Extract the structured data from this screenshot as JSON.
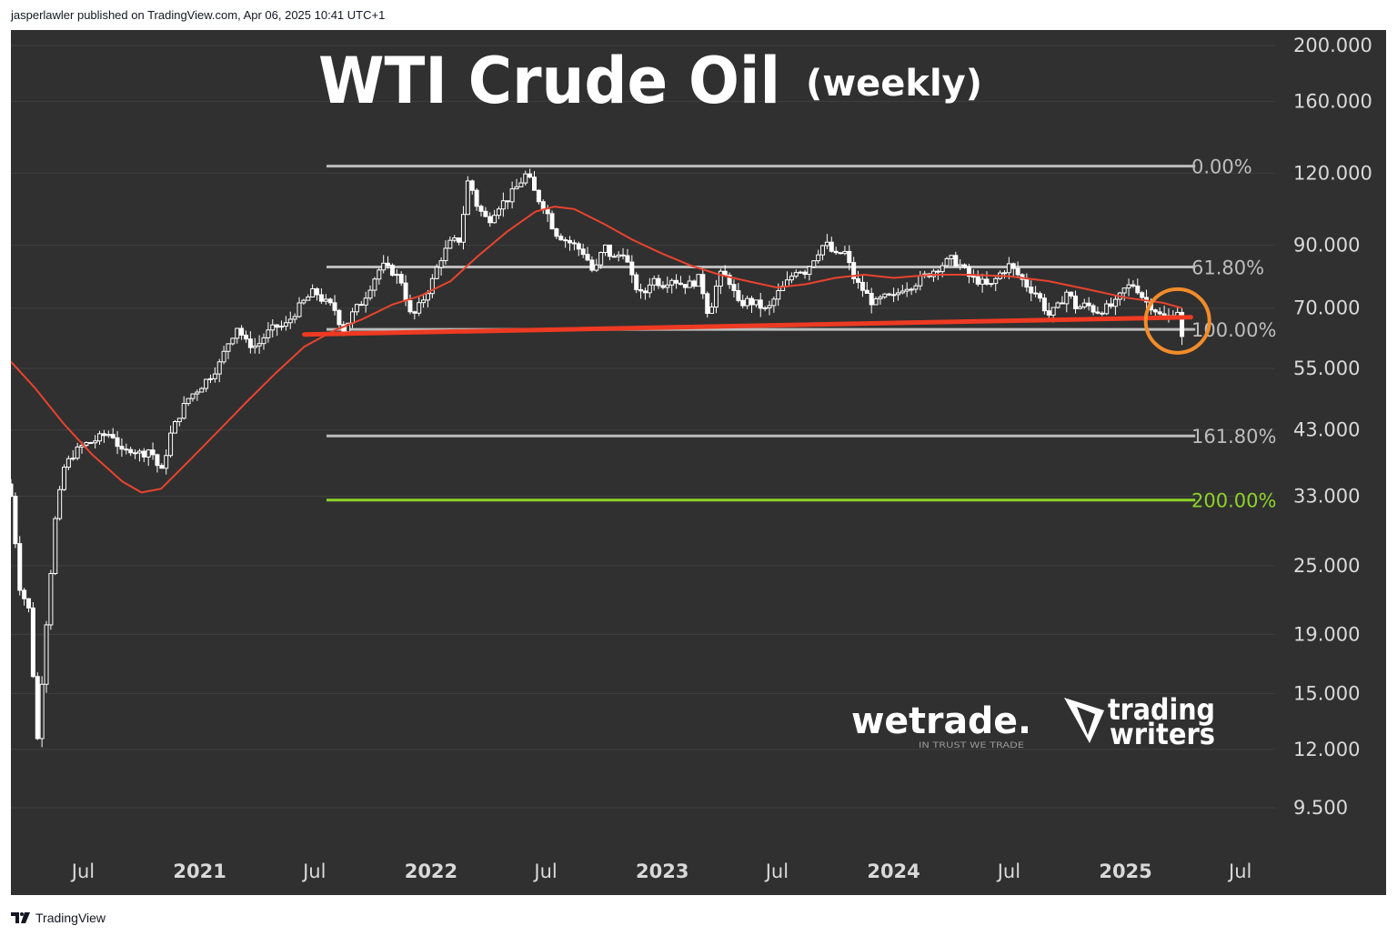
{
  "header": {
    "published_text": "jasperlawler published on TradingView.com, Apr 06, 2025 10:41 UTC+1"
  },
  "footer": {
    "brand": "TradingView",
    "logo_icon": "tradingview-logo-icon"
  },
  "brand_logos": {
    "wetrade": {
      "name": "wetrade.",
      "tagline": "IN TRUST WE TRADE"
    },
    "trading_writers": {
      "line1": "trading",
      "line2": "writers",
      "icon": "triangle-pen-icon"
    }
  },
  "colors": {
    "background": "#303030",
    "candle": "#ffffff",
    "moving_average": "#e8432e",
    "trendline": "#ee3a22",
    "fib_line": "#bdbdbd",
    "fib_200": "#8dd22a",
    "highlight_circle": "#f28c2a"
  },
  "chart_data": {
    "type": "candlestick",
    "title": "WTI Crude Oil",
    "subtitle": "(weekly)",
    "y_scale": "log",
    "ylim": [
      8.5,
      230
    ],
    "y_ticks": [
      "200.000",
      "160.000",
      "120.000",
      "90.000",
      "70.000",
      "55.000",
      "43.000",
      "33.000",
      "25.000",
      "19.000",
      "15.000",
      "12.000",
      "9.500"
    ],
    "y_tick_values": [
      200,
      160,
      120,
      90,
      70,
      55,
      43,
      33,
      25,
      19,
      15,
      12,
      9.5
    ],
    "x_ticks": [
      "Jul",
      "2021",
      "Jul",
      "2022",
      "Jul",
      "2023",
      "Jul",
      "2024",
      "Jul",
      "2025",
      "Jul"
    ],
    "x_tick_dates": [
      "2020-07-01",
      "2021-01-01",
      "2021-07-01",
      "2022-01-01",
      "2022-07-01",
      "2023-01-01",
      "2023-07-01",
      "2024-01-01",
      "2024-07-01",
      "2025-01-01",
      "2025-07-01"
    ],
    "x_tick_is_year": [
      false,
      true,
      false,
      true,
      false,
      true,
      false,
      true,
      false,
      true,
      false
    ],
    "xlim": [
      "2020-03-09",
      "2025-08-25"
    ],
    "close_series": [
      [
        "2020-03-09",
        33
      ],
      [
        "2020-03-23",
        23
      ],
      [
        "2020-04-06",
        21
      ],
      [
        "2020-04-20",
        12.5
      ],
      [
        "2020-05-04",
        20
      ],
      [
        "2020-05-18",
        30
      ],
      [
        "2020-06-01",
        37
      ],
      [
        "2020-06-15",
        39
      ],
      [
        "2020-07-01",
        40.5
      ],
      [
        "2020-07-15",
        41
      ],
      [
        "2020-08-01",
        42
      ],
      [
        "2020-08-15",
        42.5
      ],
      [
        "2020-09-01",
        39
      ],
      [
        "2020-09-15",
        40
      ],
      [
        "2020-10-01",
        39
      ],
      [
        "2020-10-15",
        40
      ],
      [
        "2020-11-01",
        36
      ],
      [
        "2020-11-15",
        42
      ],
      [
        "2020-12-01",
        46
      ],
      [
        "2020-12-15",
        49
      ],
      [
        "2021-01-01",
        51
      ],
      [
        "2021-01-15",
        53
      ],
      [
        "2021-02-01",
        56
      ],
      [
        "2021-02-15",
        61
      ],
      [
        "2021-03-01",
        65
      ],
      [
        "2021-03-15",
        61
      ],
      [
        "2021-04-01",
        60
      ],
      [
        "2021-04-15",
        63
      ],
      [
        "2021-05-01",
        65
      ],
      [
        "2021-05-15",
        65
      ],
      [
        "2021-06-01",
        69
      ],
      [
        "2021-06-15",
        72
      ],
      [
        "2021-07-01",
        75
      ],
      [
        "2021-07-15",
        72
      ],
      [
        "2021-08-01",
        70
      ],
      [
        "2021-08-15",
        64
      ],
      [
        "2021-09-01",
        69
      ],
      [
        "2021-09-15",
        72
      ],
      [
        "2021-10-01",
        78
      ],
      [
        "2021-10-15",
        83
      ],
      [
        "2021-11-01",
        81
      ],
      [
        "2021-11-15",
        78
      ],
      [
        "2021-12-01",
        67
      ],
      [
        "2021-12-15",
        71
      ],
      [
        "2022-01-01",
        77
      ],
      [
        "2022-01-15",
        85
      ],
      [
        "2022-02-01",
        91
      ],
      [
        "2022-02-15",
        92
      ],
      [
        "2022-03-01",
        118
      ],
      [
        "2022-03-15",
        105
      ],
      [
        "2022-04-01",
        99
      ],
      [
        "2022-04-15",
        105
      ],
      [
        "2022-05-01",
        108
      ],
      [
        "2022-05-15",
        113
      ],
      [
        "2022-06-01",
        120
      ],
      [
        "2022-06-15",
        110
      ],
      [
        "2022-07-01",
        104
      ],
      [
        "2022-07-15",
        95
      ],
      [
        "2022-08-01",
        92
      ],
      [
        "2022-08-15",
        90
      ],
      [
        "2022-09-01",
        87
      ],
      [
        "2022-09-15",
        80
      ],
      [
        "2022-10-01",
        90
      ],
      [
        "2022-10-15",
        85
      ],
      [
        "2022-11-01",
        88
      ],
      [
        "2022-11-15",
        78
      ],
      [
        "2022-12-01",
        73
      ],
      [
        "2022-12-15",
        79
      ],
      [
        "2023-01-01",
        77
      ],
      [
        "2023-01-15",
        79
      ],
      [
        "2023-02-01",
        77
      ],
      [
        "2023-02-15",
        77
      ],
      [
        "2023-03-01",
        79
      ],
      [
        "2023-03-15",
        68
      ],
      [
        "2023-04-01",
        80
      ],
      [
        "2023-04-15",
        79
      ],
      [
        "2023-05-01",
        71
      ],
      [
        "2023-05-15",
        72
      ],
      [
        "2023-06-01",
        71
      ],
      [
        "2023-06-15",
        69
      ],
      [
        "2023-07-01",
        74
      ],
      [
        "2023-07-15",
        77
      ],
      [
        "2023-08-01",
        82
      ],
      [
        "2023-08-15",
        81
      ],
      [
        "2023-09-01",
        87
      ],
      [
        "2023-09-15",
        91
      ],
      [
        "2023-10-01",
        86
      ],
      [
        "2023-10-15",
        88
      ],
      [
        "2023-11-01",
        78
      ],
      [
        "2023-11-15",
        75
      ],
      [
        "2023-12-01",
        71
      ],
      [
        "2023-12-15",
        73
      ],
      [
        "2024-01-01",
        73
      ],
      [
        "2024-01-15",
        76
      ],
      [
        "2024-02-01",
        77
      ],
      [
        "2024-02-15",
        79
      ],
      [
        "2024-03-01",
        81
      ],
      [
        "2024-03-15",
        83
      ],
      [
        "2024-04-01",
        85
      ],
      [
        "2024-04-15",
        83
      ],
      [
        "2024-05-01",
        79
      ],
      [
        "2024-05-15",
        78
      ],
      [
        "2024-06-01",
        76
      ],
      [
        "2024-06-15",
        80
      ],
      [
        "2024-07-01",
        83
      ],
      [
        "2024-07-15",
        80
      ],
      [
        "2024-08-01",
        76
      ],
      [
        "2024-08-15",
        74
      ],
      [
        "2024-09-01",
        68
      ],
      [
        "2024-09-15",
        70
      ],
      [
        "2024-10-01",
        75
      ],
      [
        "2024-10-15",
        70
      ],
      [
        "2024-11-01",
        71
      ],
      [
        "2024-11-15",
        69
      ],
      [
        "2024-12-01",
        70
      ],
      [
        "2024-12-15",
        71
      ],
      [
        "2025-01-01",
        76
      ],
      [
        "2025-01-15",
        77
      ],
      [
        "2025-02-01",
        72
      ],
      [
        "2025-02-15",
        70
      ],
      [
        "2025-03-01",
        67
      ],
      [
        "2025-03-15",
        68
      ],
      [
        "2025-03-24",
        69.4
      ],
      [
        "2025-03-31",
        61.99
      ]
    ],
    "moving_average": [
      [
        "2020-03-09",
        56.5
      ],
      [
        "2020-04-15",
        51
      ],
      [
        "2020-06-01",
        44
      ],
      [
        "2020-07-15",
        39
      ],
      [
        "2020-09-01",
        35
      ],
      [
        "2020-10-01",
        33.5
      ],
      [
        "2020-11-01",
        34
      ],
      [
        "2020-12-15",
        38
      ],
      [
        "2021-02-01",
        43
      ],
      [
        "2021-03-15",
        48
      ],
      [
        "2021-05-01",
        54
      ],
      [
        "2021-06-15",
        60
      ],
      [
        "2021-08-01",
        64
      ],
      [
        "2021-09-15",
        67
      ],
      [
        "2021-11-01",
        71
      ],
      [
        "2021-12-15",
        73.5
      ],
      [
        "2022-02-01",
        78
      ],
      [
        "2022-03-15",
        86
      ],
      [
        "2022-05-01",
        95
      ],
      [
        "2022-06-15",
        103
      ],
      [
        "2022-07-15",
        105
      ],
      [
        "2022-08-15",
        104
      ],
      [
        "2022-10-01",
        98
      ],
      [
        "2022-11-15",
        92
      ],
      [
        "2023-01-01",
        87
      ],
      [
        "2023-02-15",
        83
      ],
      [
        "2023-04-01",
        80
      ],
      [
        "2023-05-15",
        78
      ],
      [
        "2023-07-01",
        76
      ],
      [
        "2023-08-15",
        77
      ],
      [
        "2023-10-01",
        79
      ],
      [
        "2023-11-15",
        80
      ],
      [
        "2024-01-01",
        79
      ],
      [
        "2024-03-01",
        80
      ],
      [
        "2024-05-01",
        80
      ],
      [
        "2024-07-01",
        79.5
      ],
      [
        "2024-09-01",
        78
      ],
      [
        "2024-11-01",
        75.5
      ],
      [
        "2025-01-01",
        73
      ],
      [
        "2025-03-01",
        71.5
      ],
      [
        "2025-03-31",
        70
      ]
    ],
    "trendline": {
      "start": [
        "2021-06-15",
        63
      ],
      "end": [
        "2025-04-14",
        67.5
      ]
    },
    "fib_levels": [
      {
        "label": "0.00%",
        "value": 123.5,
        "color": "#bdbdbd",
        "start": "2021-07-20"
      },
      {
        "label": "61.80%",
        "value": 82.5,
        "color": "#bdbdbd",
        "start": "2021-07-20"
      },
      {
        "label": "100.00%",
        "value": 64.3,
        "color": "#bdbdbd",
        "start": "2021-07-20"
      },
      {
        "label": "161.80%",
        "value": 42,
        "color": "#bdbdbd",
        "start": "2021-07-20"
      },
      {
        "label": "200.00%",
        "value": 32.5,
        "color": "#8dd22a",
        "start": "2021-07-20"
      }
    ],
    "fib_end": "2025-04-21",
    "highlight": {
      "center": [
        "2025-03-24",
        66.5
      ]
    },
    "grid": true
  }
}
